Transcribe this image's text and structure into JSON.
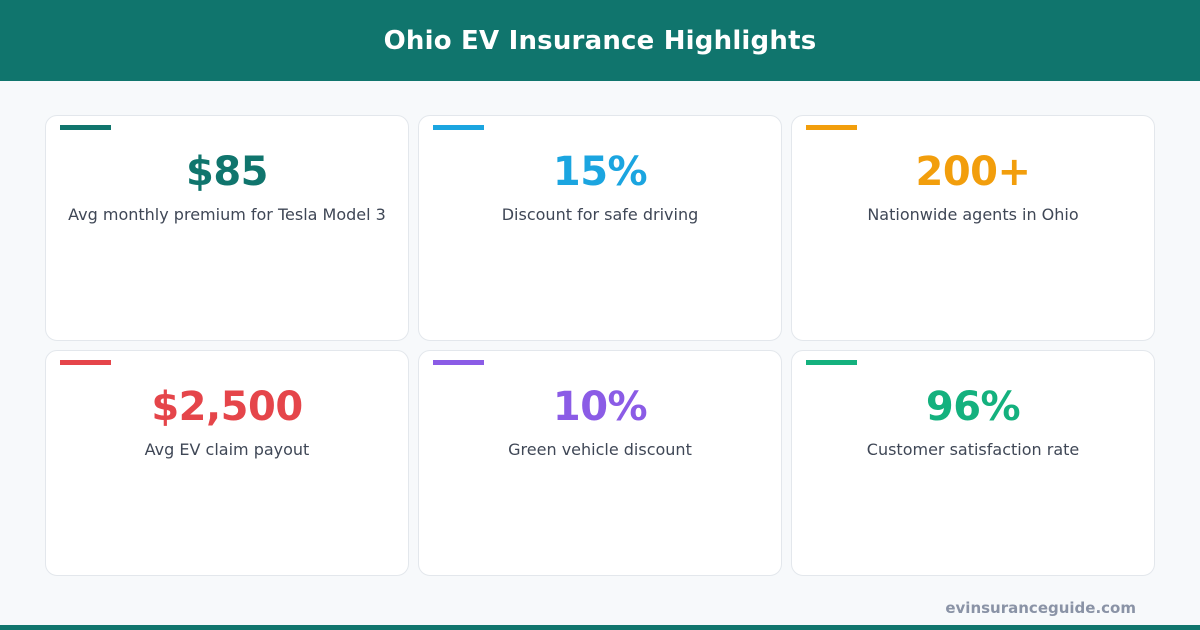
{
  "header": {
    "title": "Ohio EV Insurance Highlights",
    "background_color": "#10756d"
  },
  "cards": [
    {
      "value": "$85",
      "label": "Avg monthly premium for Tesla Model 3",
      "color": "#10756d"
    },
    {
      "value": "15%",
      "label": "Discount for safe driving",
      "color": "#1ba5e0"
    },
    {
      "value": "200+",
      "label": "Nationwide agents in Ohio",
      "color": "#f29e0c"
    },
    {
      "value": "$2,500",
      "label": "Avg EV claim payout",
      "color": "#e5454a"
    },
    {
      "value": "10%",
      "label": "Green vehicle discount",
      "color": "#8b5ce6"
    },
    {
      "value": "96%",
      "label": "Customer satisfaction rate",
      "color": "#14b17e"
    }
  ],
  "footer": {
    "site": "evinsuranceguide.com"
  }
}
